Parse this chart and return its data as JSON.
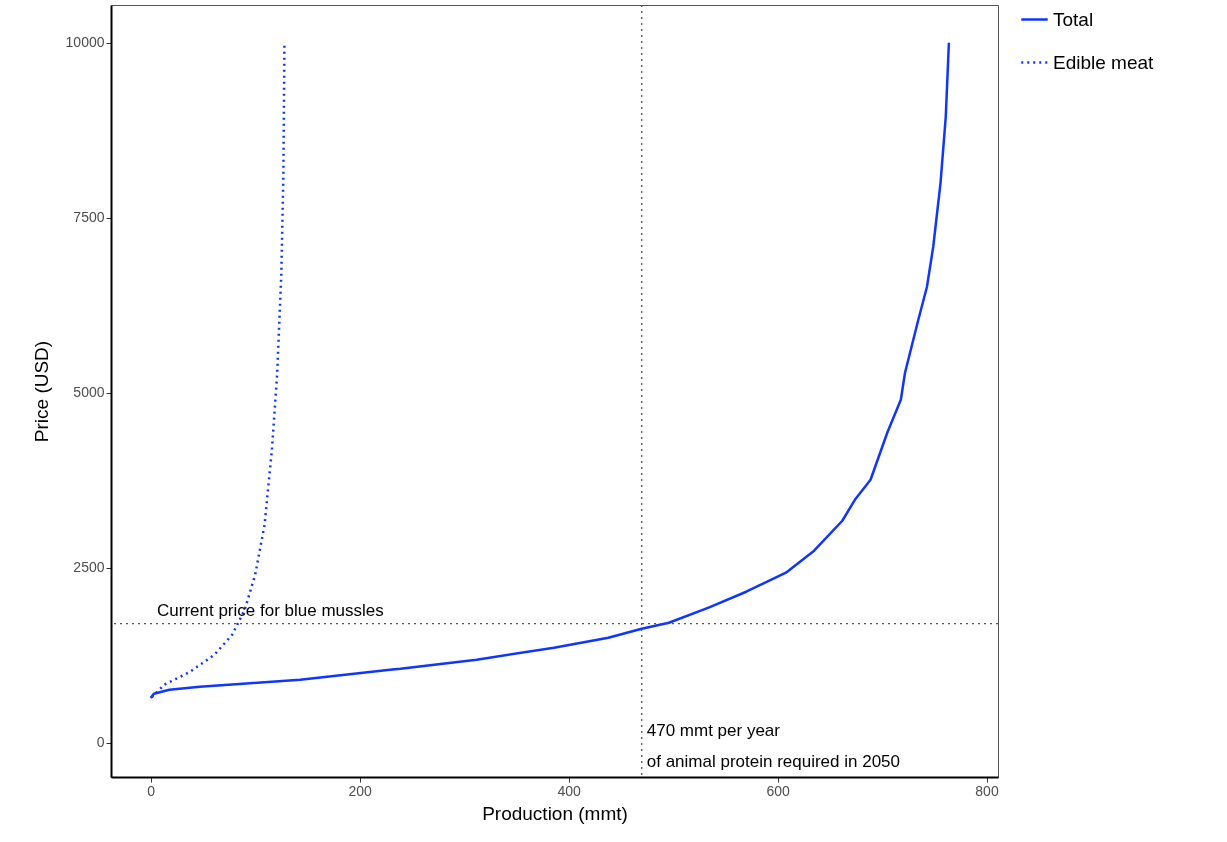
{
  "chart_data": {
    "type": "line",
    "xlabel": "Production (mmt)",
    "ylabel": "Price (USD)",
    "xlim": [
      -38,
      811
    ],
    "ylim": [
      -490,
      10540
    ],
    "xticks": [
      0,
      200,
      400,
      600,
      800
    ],
    "yticks": [
      0,
      2500,
      5000,
      7500,
      10000
    ],
    "grid": false,
    "legend": "right",
    "marker": "none",
    "series": [
      {
        "name": "Total",
        "color": "#0f35ff",
        "line_style": "solid",
        "x": [
          0,
          3,
          18,
          47,
          95,
          143,
          229,
          239,
          312,
          386,
          438,
          470,
          496,
          534,
          570,
          608,
          635,
          662,
          674,
          689,
          705,
          718,
          722,
          734,
          743,
          749,
          756,
          761,
          764
        ],
        "values": [
          640,
          700,
          757,
          800,
          850,
          900,
          1043,
          1057,
          1186,
          1357,
          1500,
          1629,
          1714,
          1929,
          2157,
          2429,
          2743,
          3171,
          3471,
          3757,
          4429,
          4900,
          5286,
          6000,
          6514,
          7086,
          8000,
          8943,
          10000
        ]
      },
      {
        "name": "Edible meat",
        "color": "#0f35ff",
        "line_style": "dotted",
        "x": [
          1,
          13,
          37,
          61,
          78,
          90,
          100,
          109,
          116,
          121,
          125,
          127,
          128
        ],
        "values": [
          650,
          829,
          1007,
          1257,
          1543,
          1900,
          2400,
          3114,
          4186,
          5257,
          6686,
          8114,
          10000
        ]
      }
    ],
    "ref_lines": [
      {
        "axis": "y",
        "value": 1700,
        "label": "Current price for blue mussles",
        "line_style": "dotted",
        "color": "#555555"
      },
      {
        "axis": "x",
        "value": 470,
        "label": "470 mmt per year\nof animal protein required in 2050",
        "line_style": "dotted",
        "color": "#555555"
      }
    ]
  }
}
